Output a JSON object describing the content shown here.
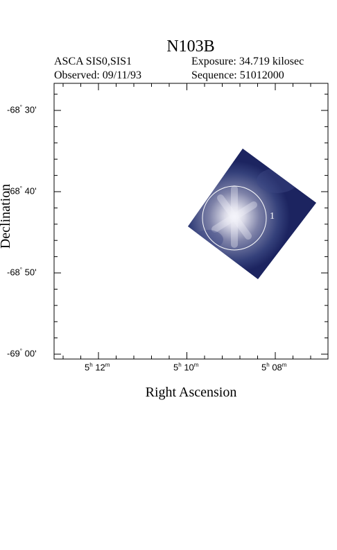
{
  "header": {
    "title": "N103B",
    "instrument": "ASCA SIS0,SIS1",
    "observed": "Observed: 09/11/93",
    "exposure": "Exposure: 34.719 kilosec",
    "sequence": "Sequence: 51012000"
  },
  "axes": {
    "xlabel": "Right Ascension",
    "ylabel": "Declination",
    "x_ticks": [
      {
        "h": "5",
        "hu": "h",
        "m": "12",
        "mu": "m"
      },
      {
        "h": "5",
        "hu": "h",
        "m": "10",
        "mu": "m"
      },
      {
        "h": "5",
        "hu": "h",
        "m": "08",
        "mu": "m"
      }
    ],
    "y_ticks": [
      {
        "deg": "-68",
        "min": "30",
        "unit": "'"
      },
      {
        "deg": "-68",
        "min": "40",
        "unit": "'"
      },
      {
        "deg": "-68",
        "min": "50",
        "unit": "'"
      },
      {
        "deg": "-69",
        "min": "00",
        "unit": "'"
      }
    ]
  },
  "region": {
    "label": "1"
  },
  "colors": {
    "background": "#ffffff",
    "image_field": "#1c2460",
    "source_glow": "#e8e8f0",
    "region_circle": "#ffffff"
  }
}
